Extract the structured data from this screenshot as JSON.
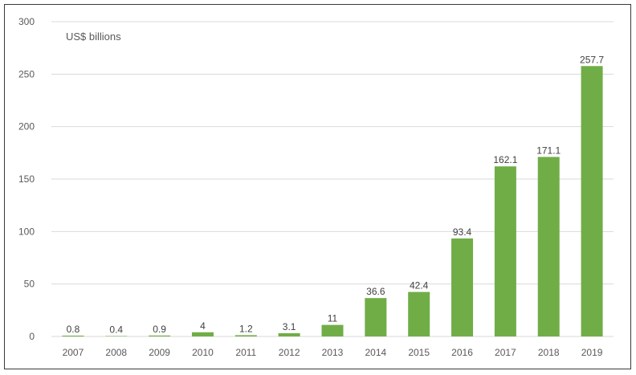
{
  "chart_data": {
    "type": "bar",
    "unit_label": "US$ billions",
    "categories": [
      "2007",
      "2008",
      "2009",
      "2010",
      "2011",
      "2012",
      "2013",
      "2014",
      "2015",
      "2016",
      "2017",
      "2018",
      "2019"
    ],
    "values": [
      0.8,
      0.4,
      0.9,
      4,
      1.2,
      3.1,
      11,
      36.6,
      42.4,
      93.4,
      162.1,
      171.1,
      257.7
    ],
    "value_labels": [
      "0.8",
      "0.4",
      "0.9",
      "4",
      "1.2",
      "3.1",
      "11",
      "36.6",
      "42.4",
      "93.4",
      "162.1",
      "171.1",
      "257.7"
    ],
    "ylim": [
      0,
      300
    ],
    "yticks": [
      "0",
      "50",
      "100",
      "150",
      "200",
      "250",
      "300"
    ],
    "grid": true,
    "legend": "none",
    "bar_color": "#70ad47",
    "grid_color": "#d9d9d9"
  }
}
